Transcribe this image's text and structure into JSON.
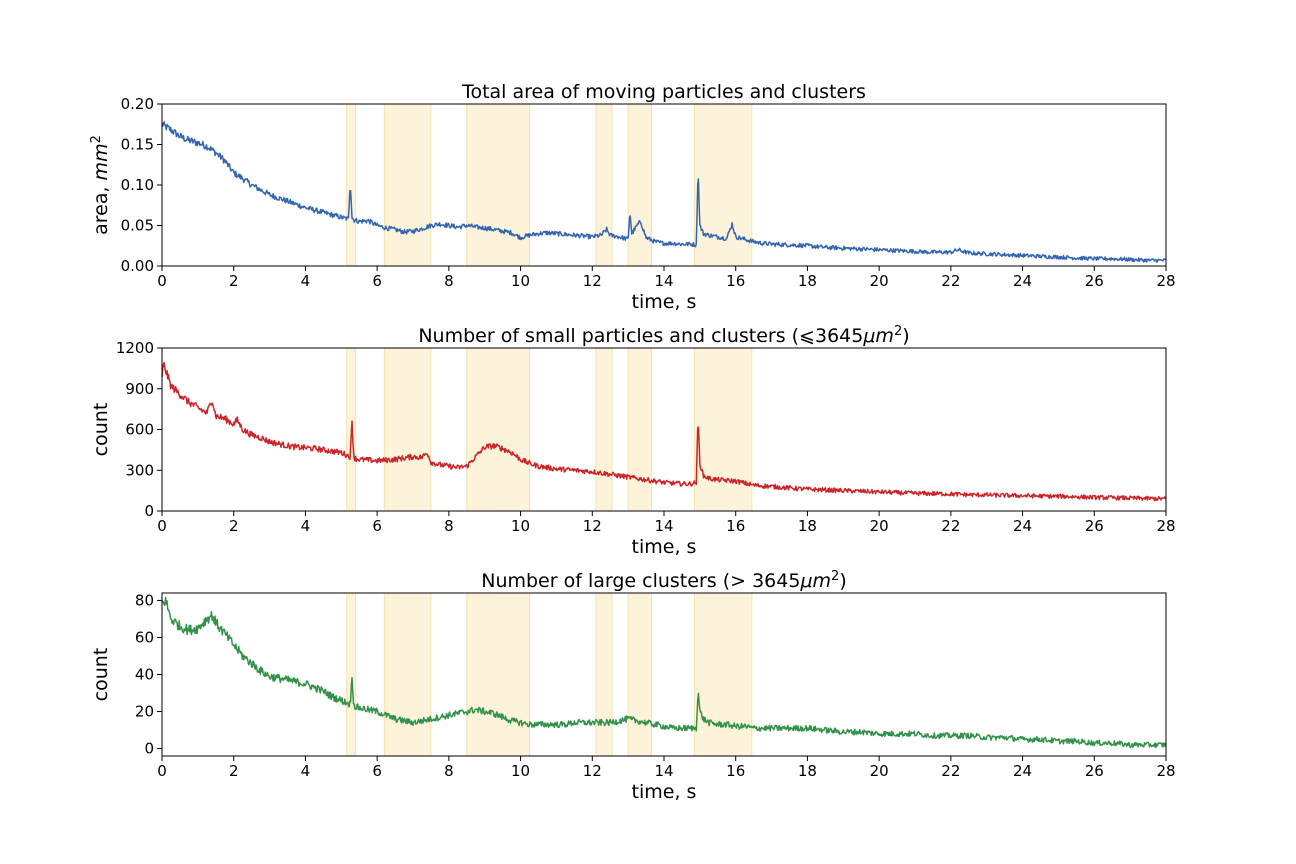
{
  "chart_data": [
    {
      "type": "line",
      "title": "Total area of moving particles and clusters",
      "xlabel": "time, s",
      "ylabel": "area, mm²",
      "ylabel_parts": {
        "text": "area, ",
        "math_base": "mm",
        "math_sup": "2"
      },
      "xlim": [
        0,
        28
      ],
      "ylim": [
        0,
        0.2
      ],
      "xticks": [
        0,
        2,
        4,
        6,
        8,
        10,
        12,
        14,
        16,
        18,
        20,
        22,
        24,
        26,
        28
      ],
      "yticks": [
        "0.00",
        "0.05",
        "0.10",
        "0.15",
        "0.20"
      ],
      "ytick_values": [
        0,
        0.05,
        0.1,
        0.15,
        0.2
      ],
      "grid": false,
      "shaded_intervals": [
        [
          5.15,
          5.4
        ],
        [
          6.2,
          7.5
        ],
        [
          8.5,
          10.25
        ],
        [
          12.1,
          12.55
        ],
        [
          13.0,
          13.65
        ],
        [
          14.85,
          16.45
        ]
      ],
      "series": [
        {
          "color": "#3465b0",
          "x": [
            0,
            0.1,
            0.25,
            0.5,
            0.75,
            1.0,
            1.25,
            1.5,
            1.75,
            2.0,
            2.25,
            2.5,
            2.75,
            3.0,
            3.25,
            3.5,
            3.75,
            4.0,
            4.25,
            4.5,
            4.75,
            5.0,
            5.2,
            5.25,
            5.3,
            5.35,
            5.5,
            5.75,
            6.0,
            6.25,
            6.5,
            6.75,
            7.0,
            7.25,
            7.5,
            7.75,
            8.0,
            8.25,
            8.5,
            8.75,
            9.0,
            9.25,
            9.5,
            9.75,
            10.0,
            10.25,
            10.5,
            10.75,
            11.0,
            11.25,
            11.5,
            11.75,
            12.0,
            12.25,
            12.4,
            12.5,
            12.75,
            13.0,
            13.05,
            13.1,
            13.25,
            13.35,
            13.5,
            13.75,
            14.0,
            14.25,
            14.5,
            14.75,
            14.9,
            14.95,
            15.0,
            15.1,
            15.25,
            15.5,
            15.75,
            15.9,
            16.0,
            16.25,
            16.5,
            16.75,
            17.0,
            17.5,
            18.0,
            18.5,
            19.0,
            19.5,
            20.0,
            20.5,
            21.0,
            21.5,
            22.0,
            22.2,
            22.5,
            23.0,
            23.5,
            24.0,
            24.5,
            25.0,
            25.5,
            26.0,
            26.5,
            27.0,
            27.5,
            28.0
          ],
          "y": [
            0.175,
            0.172,
            0.168,
            0.16,
            0.155,
            0.152,
            0.148,
            0.14,
            0.13,
            0.115,
            0.108,
            0.1,
            0.094,
            0.088,
            0.084,
            0.08,
            0.076,
            0.072,
            0.069,
            0.066,
            0.063,
            0.06,
            0.058,
            0.105,
            0.06,
            0.057,
            0.055,
            0.056,
            0.05,
            0.047,
            0.045,
            0.042,
            0.043,
            0.046,
            0.05,
            0.052,
            0.05,
            0.048,
            0.05,
            0.048,
            0.047,
            0.045,
            0.043,
            0.041,
            0.035,
            0.038,
            0.04,
            0.041,
            0.04,
            0.039,
            0.038,
            0.037,
            0.036,
            0.038,
            0.045,
            0.038,
            0.036,
            0.033,
            0.068,
            0.04,
            0.05,
            0.055,
            0.035,
            0.03,
            0.028,
            0.028,
            0.027,
            0.027,
            0.026,
            0.12,
            0.05,
            0.04,
            0.038,
            0.036,
            0.034,
            0.052,
            0.036,
            0.033,
            0.03,
            0.028,
            0.027,
            0.026,
            0.025,
            0.023,
            0.022,
            0.021,
            0.02,
            0.019,
            0.018,
            0.017,
            0.017,
            0.02,
            0.016,
            0.015,
            0.014,
            0.013,
            0.012,
            0.011,
            0.01,
            0.009,
            0.009,
            0.008,
            0.007,
            0.007
          ],
          "noise": 0.004
        }
      ]
    },
    {
      "type": "line",
      "title": "Number of small particles and clusters (⩽3645μm²)",
      "title_parts": {
        "text": "Number of small particles and clusters (⩽3645",
        "math_base": "μm",
        "math_sup": "2",
        "tail": ")"
      },
      "xlabel": "time, s",
      "ylabel": "count",
      "xlim": [
        0,
        28
      ],
      "ylim": [
        0,
        1200
      ],
      "xticks": [
        0,
        2,
        4,
        6,
        8,
        10,
        12,
        14,
        16,
        18,
        20,
        22,
        24,
        26,
        28
      ],
      "yticks": [
        "0",
        "300",
        "600",
        "900",
        "1200"
      ],
      "ytick_values": [
        0,
        300,
        600,
        900,
        1200
      ],
      "grid": false,
      "shaded_intervals": [
        [
          5.15,
          5.4
        ],
        [
          6.2,
          7.5
        ],
        [
          8.5,
          10.25
        ],
        [
          12.1,
          12.55
        ],
        [
          13.0,
          13.65
        ],
        [
          14.85,
          16.45
        ]
      ],
      "series": [
        {
          "color": "#cc2529",
          "x": [
            0,
            0.05,
            0.25,
            0.5,
            0.75,
            1.0,
            1.25,
            1.4,
            1.5,
            1.75,
            2.0,
            2.1,
            2.25,
            2.5,
            2.75,
            3.0,
            3.25,
            3.5,
            3.75,
            4.0,
            4.25,
            4.5,
            4.75,
            5.0,
            5.25,
            5.3,
            5.35,
            5.5,
            5.75,
            6.0,
            6.25,
            6.5,
            6.75,
            7.0,
            7.25,
            7.4,
            7.5,
            7.75,
            8.0,
            8.25,
            8.5,
            8.75,
            9.0,
            9.25,
            9.5,
            9.75,
            10.0,
            10.25,
            10.5,
            10.75,
            11.0,
            11.25,
            11.5,
            11.75,
            12.0,
            12.25,
            12.5,
            12.75,
            13.0,
            13.25,
            13.5,
            13.75,
            14.0,
            14.25,
            14.5,
            14.75,
            14.9,
            14.95,
            15.0,
            15.1,
            15.25,
            15.5,
            15.75,
            16.0,
            16.25,
            16.5,
            17.0,
            17.5,
            18.0,
            18.5,
            19.0,
            19.5,
            20.0,
            20.5,
            21.0,
            21.5,
            22.0,
            22.5,
            23.0,
            23.5,
            24.0,
            24.5,
            25.0,
            25.5,
            26.0,
            26.5,
            27.0,
            27.5,
            28.0
          ],
          "y": [
            1000,
            1080,
            920,
            860,
            800,
            760,
            720,
            820,
            700,
            680,
            640,
            670,
            600,
            560,
            540,
            510,
            495,
            480,
            470,
            465,
            460,
            450,
            440,
            430,
            400,
            660,
            390,
            380,
            375,
            370,
            375,
            380,
            390,
            400,
            395,
            430,
            360,
            340,
            330,
            320,
            330,
            400,
            470,
            480,
            460,
            430,
            380,
            350,
            330,
            320,
            310,
            305,
            300,
            295,
            290,
            280,
            270,
            260,
            250,
            240,
            230,
            220,
            210,
            205,
            200,
            200,
            210,
            690,
            350,
            260,
            240,
            230,
            225,
            220,
            205,
            190,
            180,
            170,
            160,
            155,
            150,
            145,
            140,
            135,
            130,
            128,
            125,
            120,
            118,
            115,
            112,
            110,
            108,
            105,
            100,
            98,
            95,
            92,
            90
          ],
          "noise": 25
        }
      ]
    },
    {
      "type": "line",
      "title": "Number of large clusters (>3645μm²)",
      "title_parts": {
        "text": "Number of large clusters (",
        "math_prefix": "> 3645",
        "math_base": "μm",
        "math_sup": "2",
        "tail": ")"
      },
      "xlabel": "time, s",
      "ylabel": "count",
      "xlim": [
        0,
        28
      ],
      "ylim": [
        -4,
        84
      ],
      "xticks": [
        0,
        2,
        4,
        6,
        8,
        10,
        12,
        14,
        16,
        18,
        20,
        22,
        24,
        26,
        28
      ],
      "yticks": [
        "0",
        "20",
        "40",
        "60",
        "80"
      ],
      "ytick_values": [
        0,
        20,
        40,
        60,
        80
      ],
      "grid": false,
      "shaded_intervals": [
        [
          5.15,
          5.4
        ],
        [
          6.2,
          7.5
        ],
        [
          8.5,
          10.25
        ],
        [
          12.1,
          12.55
        ],
        [
          13.0,
          13.65
        ],
        [
          14.85,
          16.45
        ]
      ],
      "series": [
        {
          "color": "#33924a",
          "x": [
            0,
            0.1,
            0.25,
            0.5,
            0.75,
            1.0,
            1.25,
            1.4,
            1.5,
            1.75,
            2.0,
            2.25,
            2.5,
            2.75,
            3.0,
            3.25,
            3.5,
            3.75,
            4.0,
            4.25,
            4.5,
            4.75,
            5.0,
            5.25,
            5.3,
            5.35,
            5.5,
            5.75,
            6.0,
            6.25,
            6.5,
            6.75,
            7.0,
            7.25,
            7.5,
            7.75,
            8.0,
            8.25,
            8.5,
            8.75,
            9.0,
            9.25,
            9.5,
            9.75,
            10.0,
            10.25,
            10.5,
            10.75,
            11.0,
            11.25,
            11.5,
            11.75,
            12.0,
            12.25,
            12.5,
            12.75,
            13.0,
            13.25,
            13.5,
            13.75,
            14.0,
            14.25,
            14.5,
            14.75,
            14.9,
            14.95,
            15.0,
            15.1,
            15.25,
            15.5,
            15.75,
            16.0,
            16.25,
            16.5,
            17.0,
            17.5,
            18.0,
            18.5,
            19.0,
            19.5,
            20.0,
            20.5,
            21.0,
            21.5,
            22.0,
            22.5,
            23.0,
            23.5,
            24.0,
            24.5,
            25.0,
            25.5,
            26.0,
            26.5,
            27.0,
            27.5,
            28.0
          ],
          "y": [
            78,
            80,
            70,
            66,
            64,
            65,
            70,
            72,
            68,
            62,
            56,
            50,
            46,
            42,
            39,
            38,
            37,
            36,
            35,
            33,
            31,
            28,
            26,
            24,
            39,
            23,
            22,
            21,
            20,
            18,
            16,
            15,
            14,
            15,
            16,
            17,
            18,
            19,
            20,
            21,
            20,
            19,
            17,
            15,
            14,
            13,
            13,
            13,
            13,
            13,
            14,
            14,
            14,
            14,
            14,
            15,
            16,
            15,
            14,
            13,
            12,
            11,
            11,
            11,
            11,
            32,
            20,
            16,
            14,
            13,
            13,
            12,
            12,
            11,
            11,
            11,
            11,
            10,
            9,
            9,
            8,
            8,
            8,
            7,
            7,
            7,
            6,
            6,
            5,
            5,
            4,
            4,
            3,
            3,
            2,
            2,
            2
          ],
          "noise": 2.5
        }
      ]
    }
  ],
  "colors": {
    "shading": "#fdf3da",
    "shading_edge": "#f6e3a8"
  }
}
